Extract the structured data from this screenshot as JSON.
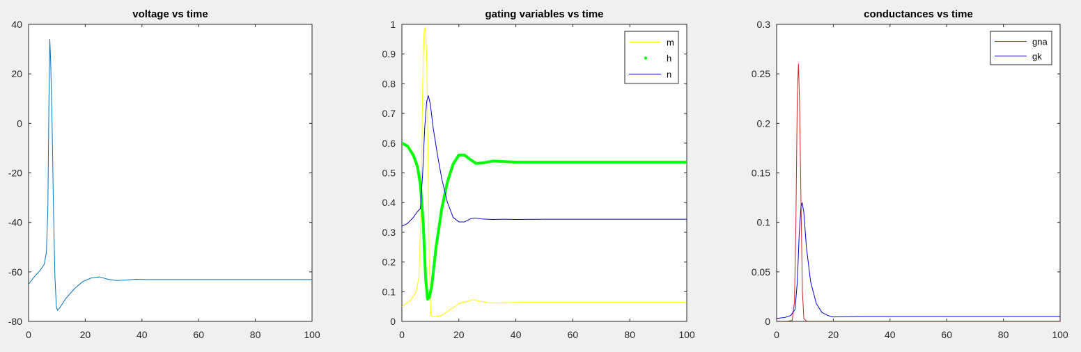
{
  "figure": {
    "background": "#f0f0f0",
    "axes_color": "#262626"
  },
  "chart_data": [
    {
      "type": "line",
      "title": "voltage vs time",
      "xlabel": "",
      "ylabel": "",
      "xlim": [
        0,
        100
      ],
      "ylim": [
        -80,
        40
      ],
      "xticks": [
        0,
        20,
        40,
        60,
        80,
        100
      ],
      "yticks": [
        -80,
        -60,
        -40,
        -20,
        0,
        20,
        40
      ],
      "grid": false,
      "legend": null,
      "series": [
        {
          "color": "#0072bd",
          "width": 1,
          "marker": false,
          "points": [
            [
              0,
              -65
            ],
            [
              2,
              -62
            ],
            [
              4,
              -59.5
            ],
            [
              5.5,
              -57
            ],
            [
              6.3,
              -52
            ],
            [
              6.8,
              -35
            ],
            [
              7.2,
              10
            ],
            [
              7.5,
              34
            ],
            [
              7.8,
              25
            ],
            [
              8.3,
              0
            ],
            [
              8.8,
              -35
            ],
            [
              9.3,
              -62
            ],
            [
              9.8,
              -74
            ],
            [
              10.2,
              -75.5
            ],
            [
              11,
              -74.5
            ],
            [
              13,
              -71
            ],
            [
              16,
              -67
            ],
            [
              19,
              -64
            ],
            [
              22,
              -62.5
            ],
            [
              25,
              -62
            ],
            [
              28,
              -63
            ],
            [
              31,
              -63.5
            ],
            [
              34,
              -63.3
            ],
            [
              38,
              -63
            ],
            [
              42,
              -63.1
            ],
            [
              50,
              -63.1
            ],
            [
              60,
              -63.1
            ],
            [
              70,
              -63.1
            ],
            [
              80,
              -63.1
            ],
            [
              90,
              -63.1
            ],
            [
              100,
              -63.1
            ]
          ]
        }
      ]
    },
    {
      "type": "line",
      "title": "gating variables vs time",
      "xlabel": "",
      "ylabel": "",
      "xlim": [
        0,
        100
      ],
      "ylim": [
        0,
        1
      ],
      "xticks": [
        0,
        20,
        40,
        60,
        80,
        100
      ],
      "yticks": [
        0,
        0.1,
        0.2,
        0.3,
        0.4,
        0.5,
        0.6,
        0.7,
        0.8,
        0.9,
        1
      ],
      "grid": false,
      "legend": "top-right",
      "series": [
        {
          "name": "m",
          "color": "#ffff00",
          "width": 1,
          "marker": false,
          "points": [
            [
              0,
              0.05
            ],
            [
              3,
              0.07
            ],
            [
              5,
              0.1
            ],
            [
              6,
              0.15
            ],
            [
              6.8,
              0.4
            ],
            [
              7.3,
              0.8
            ],
            [
              7.8,
              0.98
            ],
            [
              8.2,
              0.99
            ],
            [
              8.7,
              0.9
            ],
            [
              9.2,
              0.55
            ],
            [
              9.6,
              0.2
            ],
            [
              10.2,
              0.02
            ],
            [
              11,
              0.015
            ],
            [
              14,
              0.02
            ],
            [
              17,
              0.04
            ],
            [
              20,
              0.06
            ],
            [
              25,
              0.073
            ],
            [
              30,
              0.063
            ],
            [
              35,
              0.062
            ],
            [
              40,
              0.064
            ],
            [
              50,
              0.064
            ],
            [
              60,
              0.064
            ],
            [
              70,
              0.064
            ],
            [
              80,
              0.064
            ],
            [
              90,
              0.064
            ],
            [
              100,
              0.064
            ]
          ]
        },
        {
          "name": "h",
          "color": "#00ff00",
          "width": 4,
          "marker": true,
          "points": [
            [
              0,
              0.6
            ],
            [
              2,
              0.59
            ],
            [
              4,
              0.56
            ],
            [
              5.5,
              0.52
            ],
            [
              6.5,
              0.46
            ],
            [
              7.5,
              0.33
            ],
            [
              8.3,
              0.15
            ],
            [
              9,
              0.075
            ],
            [
              9.6,
              0.08
            ],
            [
              10.5,
              0.12
            ],
            [
              12,
              0.25
            ],
            [
              14,
              0.38
            ],
            [
              16,
              0.47
            ],
            [
              18,
              0.53
            ],
            [
              20,
              0.56
            ],
            [
              22,
              0.56
            ],
            [
              24,
              0.545
            ],
            [
              26,
              0.532
            ],
            [
              28,
              0.533
            ],
            [
              32,
              0.54
            ],
            [
              36,
              0.538
            ],
            [
              40,
              0.536
            ],
            [
              50,
              0.536
            ],
            [
              60,
              0.536
            ],
            [
              70,
              0.536
            ],
            [
              80,
              0.536
            ],
            [
              90,
              0.536
            ],
            [
              100,
              0.536
            ]
          ]
        },
        {
          "name": "n",
          "color": "#0000cd",
          "width": 1,
          "marker": false,
          "points": [
            [
              0,
              0.32
            ],
            [
              2,
              0.33
            ],
            [
              4,
              0.35
            ],
            [
              5.5,
              0.37
            ],
            [
              6.5,
              0.38
            ],
            [
              7.3,
              0.5
            ],
            [
              8,
              0.65
            ],
            [
              8.7,
              0.74
            ],
            [
              9.3,
              0.76
            ],
            [
              10,
              0.73
            ],
            [
              11,
              0.65
            ],
            [
              12.5,
              0.56
            ],
            [
              14,
              0.48
            ],
            [
              16,
              0.4
            ],
            [
              18,
              0.35
            ],
            [
              20,
              0.335
            ],
            [
              22,
              0.335
            ],
            [
              24,
              0.345
            ],
            [
              25.5,
              0.348
            ],
            [
              28,
              0.345
            ],
            [
              32,
              0.343
            ],
            [
              36,
              0.344
            ],
            [
              40,
              0.343
            ],
            [
              50,
              0.344
            ],
            [
              60,
              0.344
            ],
            [
              70,
              0.344
            ],
            [
              80,
              0.344
            ],
            [
              90,
              0.344
            ],
            [
              100,
              0.344
            ]
          ]
        }
      ]
    },
    {
      "type": "line",
      "title": "conductances vs time",
      "xlabel": "",
      "ylabel": "",
      "xlim": [
        0,
        100
      ],
      "ylim": [
        0,
        0.3
      ],
      "xticks": [
        0,
        20,
        40,
        60,
        80,
        100
      ],
      "yticks": [
        0,
        0.05,
        0.1,
        0.15,
        0.2,
        0.25,
        0.3
      ],
      "grid": false,
      "legend": "top-right",
      "series": [
        {
          "name": "gna",
          "color": "#d42020",
          "width": 1,
          "marker": false,
          "points": [
            [
              0,
              0.0002
            ],
            [
              4,
              0.0003
            ],
            [
              5.5,
              0.001
            ],
            [
              6.3,
              0.02
            ],
            [
              6.8,
              0.1
            ],
            [
              7.3,
              0.23
            ],
            [
              7.7,
              0.26
            ],
            [
              8.1,
              0.22
            ],
            [
              8.6,
              0.12
            ],
            [
              9.1,
              0.03
            ],
            [
              9.6,
              0.003
            ],
            [
              10.5,
              0.0003
            ],
            [
              20,
              0.0002
            ],
            [
              100,
              0.0002
            ]
          ]
        },
        {
          "name": "gk",
          "color": "#0000cd",
          "width": 1,
          "marker": false,
          "points": [
            [
              0,
              0.003
            ],
            [
              3,
              0.004
            ],
            [
              5,
              0.006
            ],
            [
              6.5,
              0.012
            ],
            [
              7.3,
              0.04
            ],
            [
              8,
              0.09
            ],
            [
              8.6,
              0.116
            ],
            [
              9,
              0.12
            ],
            [
              9.6,
              0.11
            ],
            [
              10.5,
              0.075
            ],
            [
              12,
              0.04
            ],
            [
              14,
              0.018
            ],
            [
              16,
              0.009
            ],
            [
              18,
              0.006
            ],
            [
              20,
              0.0045
            ],
            [
              25,
              0.0048
            ],
            [
              30,
              0.005
            ],
            [
              40,
              0.005
            ],
            [
              60,
              0.005
            ],
            [
              80,
              0.005
            ],
            [
              100,
              0.005
            ]
          ]
        }
      ]
    }
  ]
}
